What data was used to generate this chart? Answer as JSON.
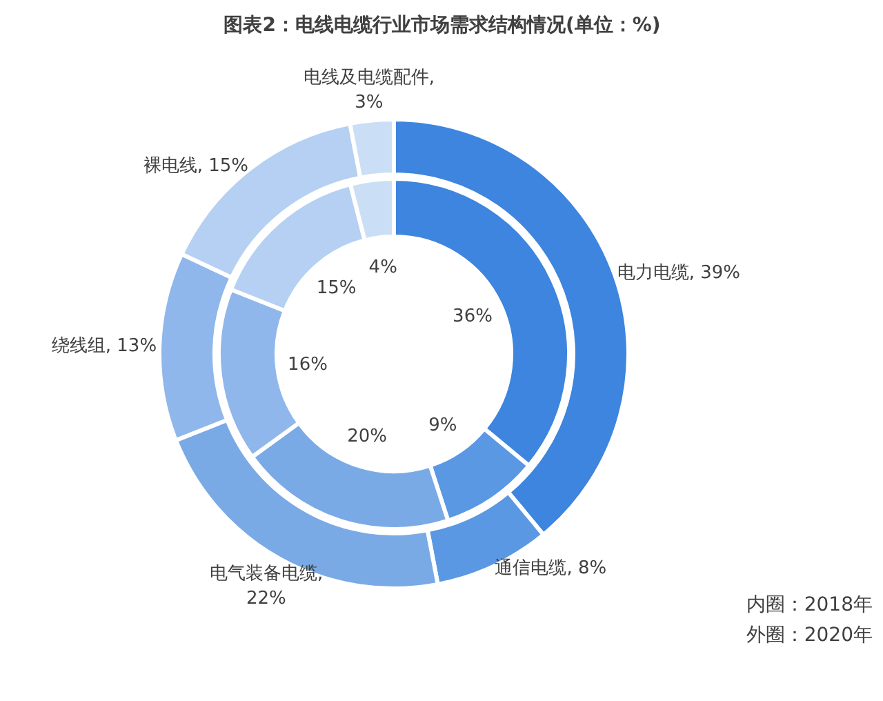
{
  "chart_data": {
    "type": "donut",
    "title": "图表2：电线电缆行业市场需求结构情况(单位：%)",
    "categories": [
      "电力电缆",
      "通信电缆",
      "电气装备电缆",
      "绕线组",
      "裸电线",
      "电线及电缆配件"
    ],
    "series": [
      {
        "values": [
          36,
          9,
          20,
          16,
          15,
          4
        ],
        "colors": [
          "#3d85de",
          "#5a98e3",
          "#7aaae6",
          "#8fb7eb",
          "#b5d0f2",
          "#cadff6"
        ],
        "value_labels": [
          "36%",
          "9%",
          "20%",
          "16%",
          "15%",
          "4%"
        ]
      },
      {
        "values": [
          39,
          8,
          22,
          13,
          15,
          3
        ],
        "colors": [
          "#3d85de",
          "#5a98e3",
          "#7aaae6",
          "#8fb7eb",
          "#b5d0f2",
          "#cadff6"
        ],
        "value_labels": [
          ", 39%",
          ", 8%",
          ",\n22%",
          ", 13%",
          ", 15%",
          ",\n3%"
        ]
      }
    ],
    "annotations": [
      "内圈：2018年",
      "外圈：2020年"
    ]
  }
}
